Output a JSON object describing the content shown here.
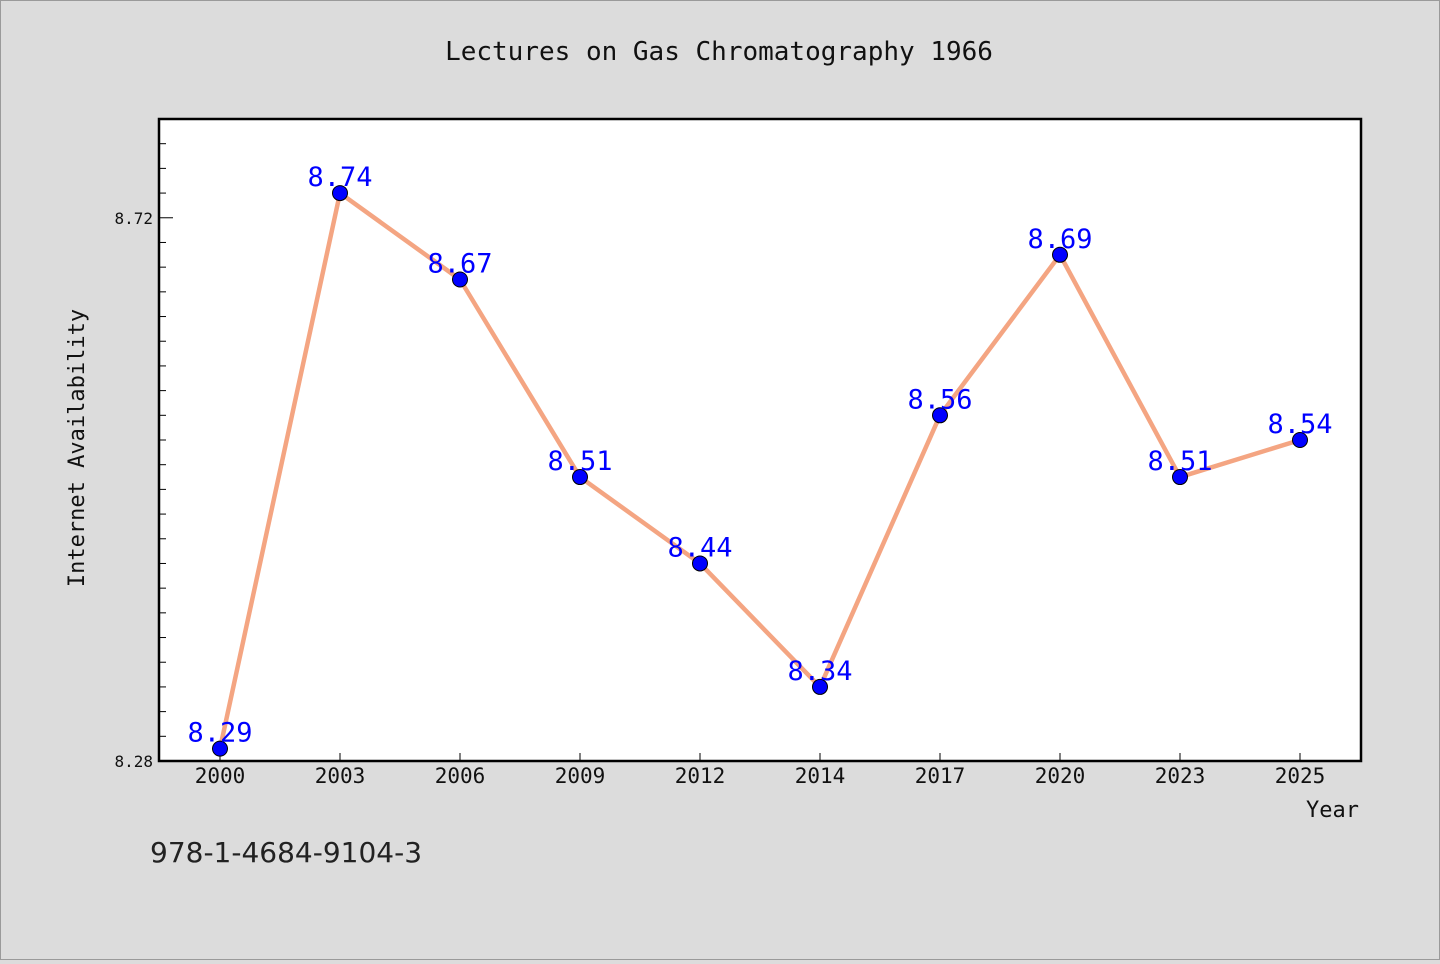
{
  "chart_data": {
    "type": "line",
    "title": "Lectures on Gas Chromatography 1966",
    "xlabel": "Year",
    "ylabel": "Internet Availability",
    "categories": [
      "2000",
      "2003",
      "2006",
      "2009",
      "2012",
      "2014",
      "2017",
      "2020",
      "2023",
      "2025"
    ],
    "series": [
      {
        "values": [
          8.29,
          8.74,
          8.67,
          8.51,
          8.44,
          8.34,
          8.56,
          8.69,
          8.51,
          8.54
        ],
        "labels": [
          "8.29",
          "8.74",
          "8.67",
          "8.51",
          "8.44",
          "8.34",
          "8.56",
          "8.69",
          "8.51",
          "8.54"
        ]
      }
    ],
    "ylim": [
      8.28,
      8.8
    ]
  },
  "axes": {
    "y_ticks": [
      "8.72",
      "8.28"
    ],
    "y_tick_values": [
      8.72,
      8.28
    ]
  },
  "footer": {
    "isbn": "978-1-4684-9104-3"
  },
  "colors": {
    "background": "#dcdcdc",
    "plot_background": "#ffffff",
    "line": "#f4a582",
    "marker": "#0000ff",
    "data_label": "#0000ff",
    "axis": "#000000"
  }
}
